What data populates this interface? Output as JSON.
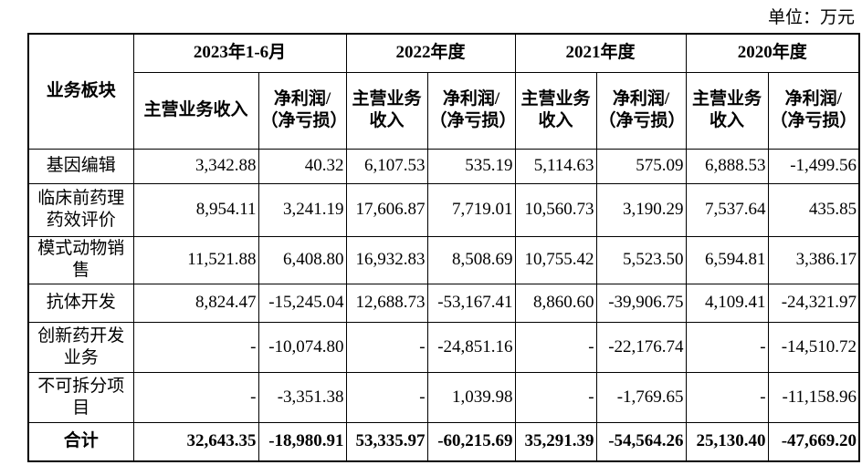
{
  "unit": "单位：万元",
  "table": {
    "corner": "业务板块",
    "years": [
      "2023年1-6月",
      "2022年度",
      "2021年度",
      "2020年度"
    ],
    "subheaders": [
      [
        "主营业务收入",
        "净利润/（净亏损）"
      ],
      [
        "主营业务收入",
        "净利润/（净亏损）"
      ],
      [
        "主营业务收入",
        "净利润/（净亏损）"
      ],
      [
        "主营业务收入",
        "净利润/（净亏损）"
      ]
    ],
    "rows": [
      [
        "基因编辑",
        "3,342.88",
        "40.32",
        "6,107.53",
        "535.19",
        "5,114.63",
        "575.09",
        "6,888.53",
        "-1,499.56"
      ],
      [
        "临床前药理药效评价",
        "8,954.11",
        "3,241.19",
        "17,606.87",
        "7,719.01",
        "10,560.73",
        "3,190.29",
        "7,537.64",
        "435.85"
      ],
      [
        "模式动物销售",
        "11,521.88",
        "6,408.80",
        "16,932.83",
        "8,508.69",
        "10,755.42",
        "5,523.50",
        "6,594.81",
        "3,386.17"
      ],
      [
        "抗体开发",
        "8,824.47",
        "-15,245.04",
        "12,688.73",
        "-53,167.41",
        "8,860.60",
        "-39,906.75",
        "4,109.41",
        "-24,321.97"
      ],
      [
        "创新药开发业务",
        "-",
        "-10,074.80",
        "-",
        "-24,851.16",
        "-",
        "-22,176.74",
        "-",
        "-14,510.72"
      ],
      [
        "不可拆分项目",
        "-",
        "-3,351.38",
        "-",
        "1,039.98",
        "-",
        "-1,769.65",
        "-",
        "-11,158.96"
      ]
    ],
    "total": [
      "合计",
      "32,643.35",
      "-18,980.91",
      "53,335.97",
      "-60,215.69",
      "35,291.39",
      "-54,564.26",
      "25,130.40",
      "-47,669.20"
    ]
  }
}
